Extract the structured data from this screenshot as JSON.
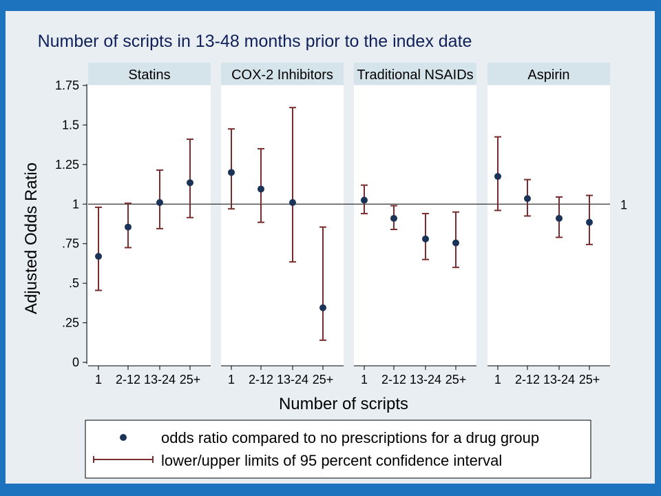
{
  "chart_data": {
    "type": "scatter",
    "title": "Number of scripts in 13-48 months prior to the index date",
    "xlabel": "Number of scripts",
    "ylabel": "Adjusted Odds Ratio",
    "ylim": [
      0,
      1.75
    ],
    "yticks": [
      0,
      0.25,
      0.5,
      0.75,
      1,
      1.25,
      1.5,
      1.75
    ],
    "ytick_labels": [
      "0",
      ".25",
      ".5",
      ".75",
      "1",
      "1.25",
      "1.5",
      "1.75"
    ],
    "reference_line": {
      "value": 1,
      "label": "1"
    },
    "categories": [
      "1",
      "2-12",
      "13-24",
      "25+"
    ],
    "panels": [
      {
        "name": "Statins",
        "estimate": [
          0.67,
          0.855,
          1.01,
          1.135
        ],
        "lower": [
          0.455,
          0.725,
          0.845,
          0.915
        ],
        "upper": [
          0.98,
          1.005,
          1.215,
          1.41
        ]
      },
      {
        "name": "COX-2 Inhibitors",
        "estimate": [
          1.2,
          1.095,
          1.01,
          0.345
        ],
        "lower": [
          0.97,
          0.885,
          0.635,
          0.14
        ],
        "upper": [
          1.475,
          1.35,
          1.61,
          0.855
        ]
      },
      {
        "name": "Traditional NSAIDs",
        "estimate": [
          1.025,
          0.91,
          0.78,
          0.755
        ],
        "lower": [
          0.94,
          0.84,
          0.65,
          0.6
        ],
        "upper": [
          1.12,
          0.99,
          0.94,
          0.95
        ]
      },
      {
        "name": "Aspirin",
        "estimate": [
          1.175,
          1.035,
          0.91,
          0.885
        ],
        "lower": [
          0.96,
          0.925,
          0.79,
          0.745
        ],
        "upper": [
          1.425,
          1.155,
          1.045,
          1.055
        ]
      }
    ],
    "grid": false,
    "legend": {
      "placement": "bottom",
      "entries": [
        {
          "symbol": "dot",
          "label": "odds ratio compared to no prescriptions for a drug group"
        },
        {
          "symbol": "capped-bar",
          "label": "lower/upper limits of 95 percent confidence interval"
        }
      ]
    },
    "colors": {
      "dot": "#1c3358",
      "ci": "#7a2c2c",
      "panel_strip": "#d5e3ea",
      "background": "#e8eef2",
      "frame": "#1e73be"
    }
  }
}
